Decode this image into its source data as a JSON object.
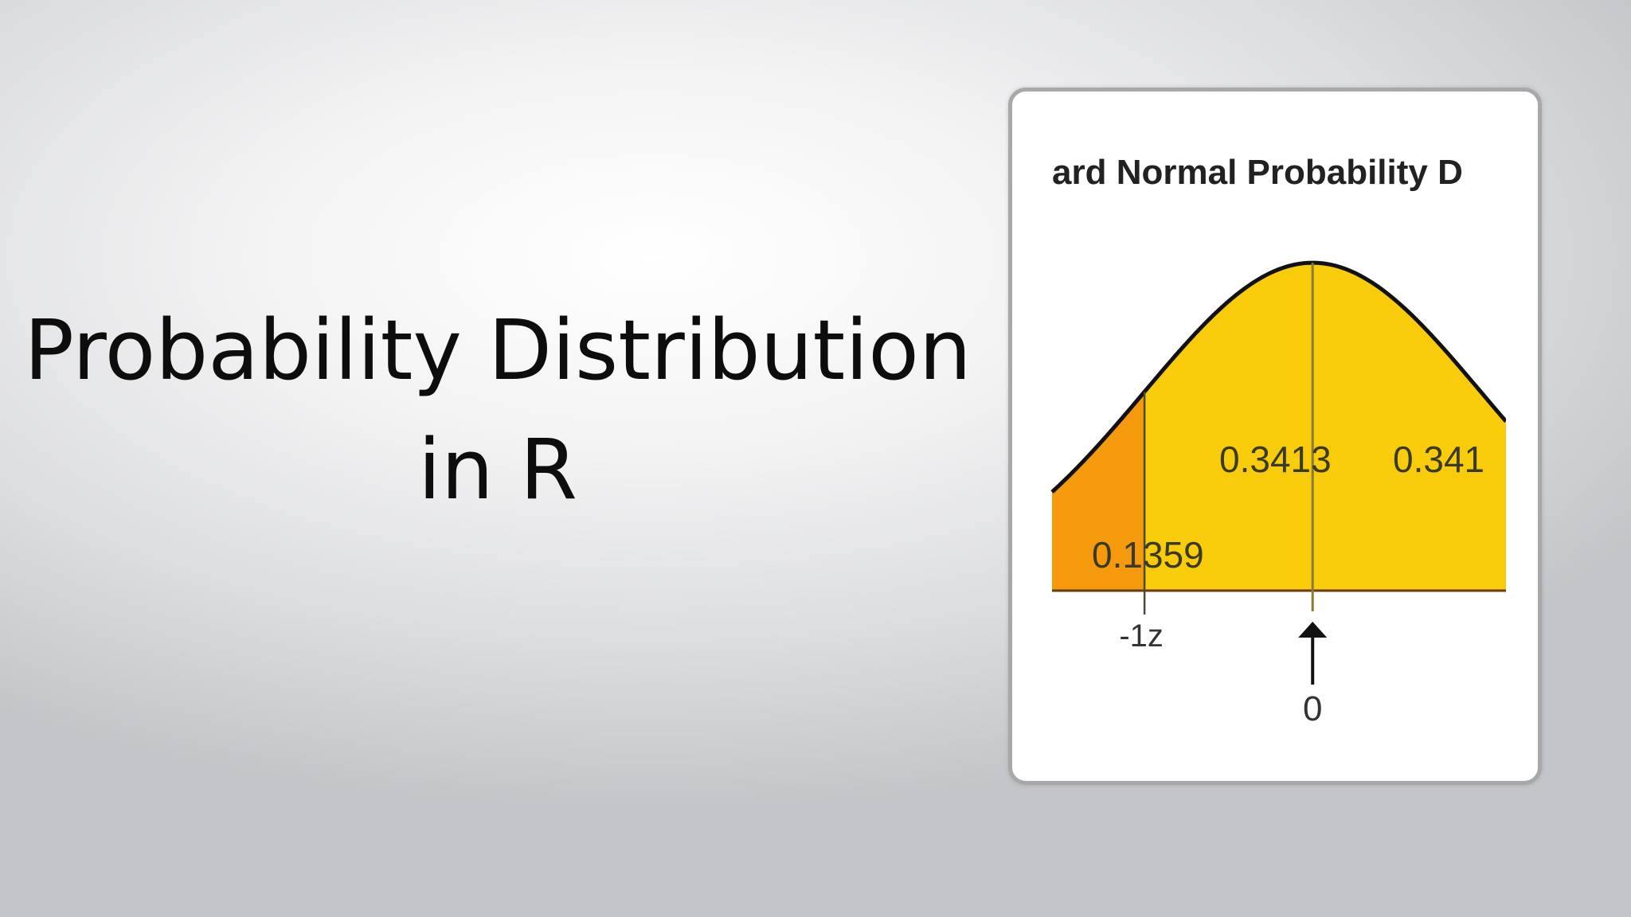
{
  "slide": {
    "title_line1": "Probability Distribution",
    "title_line2": "in R"
  },
  "figure": {
    "chart_title": "ard Normal Probability D",
    "colors": {
      "tail_fill": "#f59a0c",
      "center_fill": "#f8cc0a",
      "curve_stroke": "#111111",
      "label_text": "#3a3a2a"
    }
  },
  "chart_data": {
    "type": "area",
    "title": "ard Normal Probability D",
    "distribution": "standard normal",
    "xlim": [
      -1.55,
      1.15
    ],
    "ylim": [
      0,
      0.4
    ],
    "regions": [
      {
        "from": -1.55,
        "to": -1,
        "value": "0.1359"
      },
      {
        "from": -1,
        "to": 0,
        "value": "0.3413"
      },
      {
        "from": 0,
        "to": 1.15,
        "value": "0.341"
      }
    ],
    "x_markers": [
      {
        "x": -1,
        "label": "-1z"
      },
      {
        "x": 0,
        "label": "0"
      }
    ],
    "grid": false,
    "legend": "none"
  }
}
